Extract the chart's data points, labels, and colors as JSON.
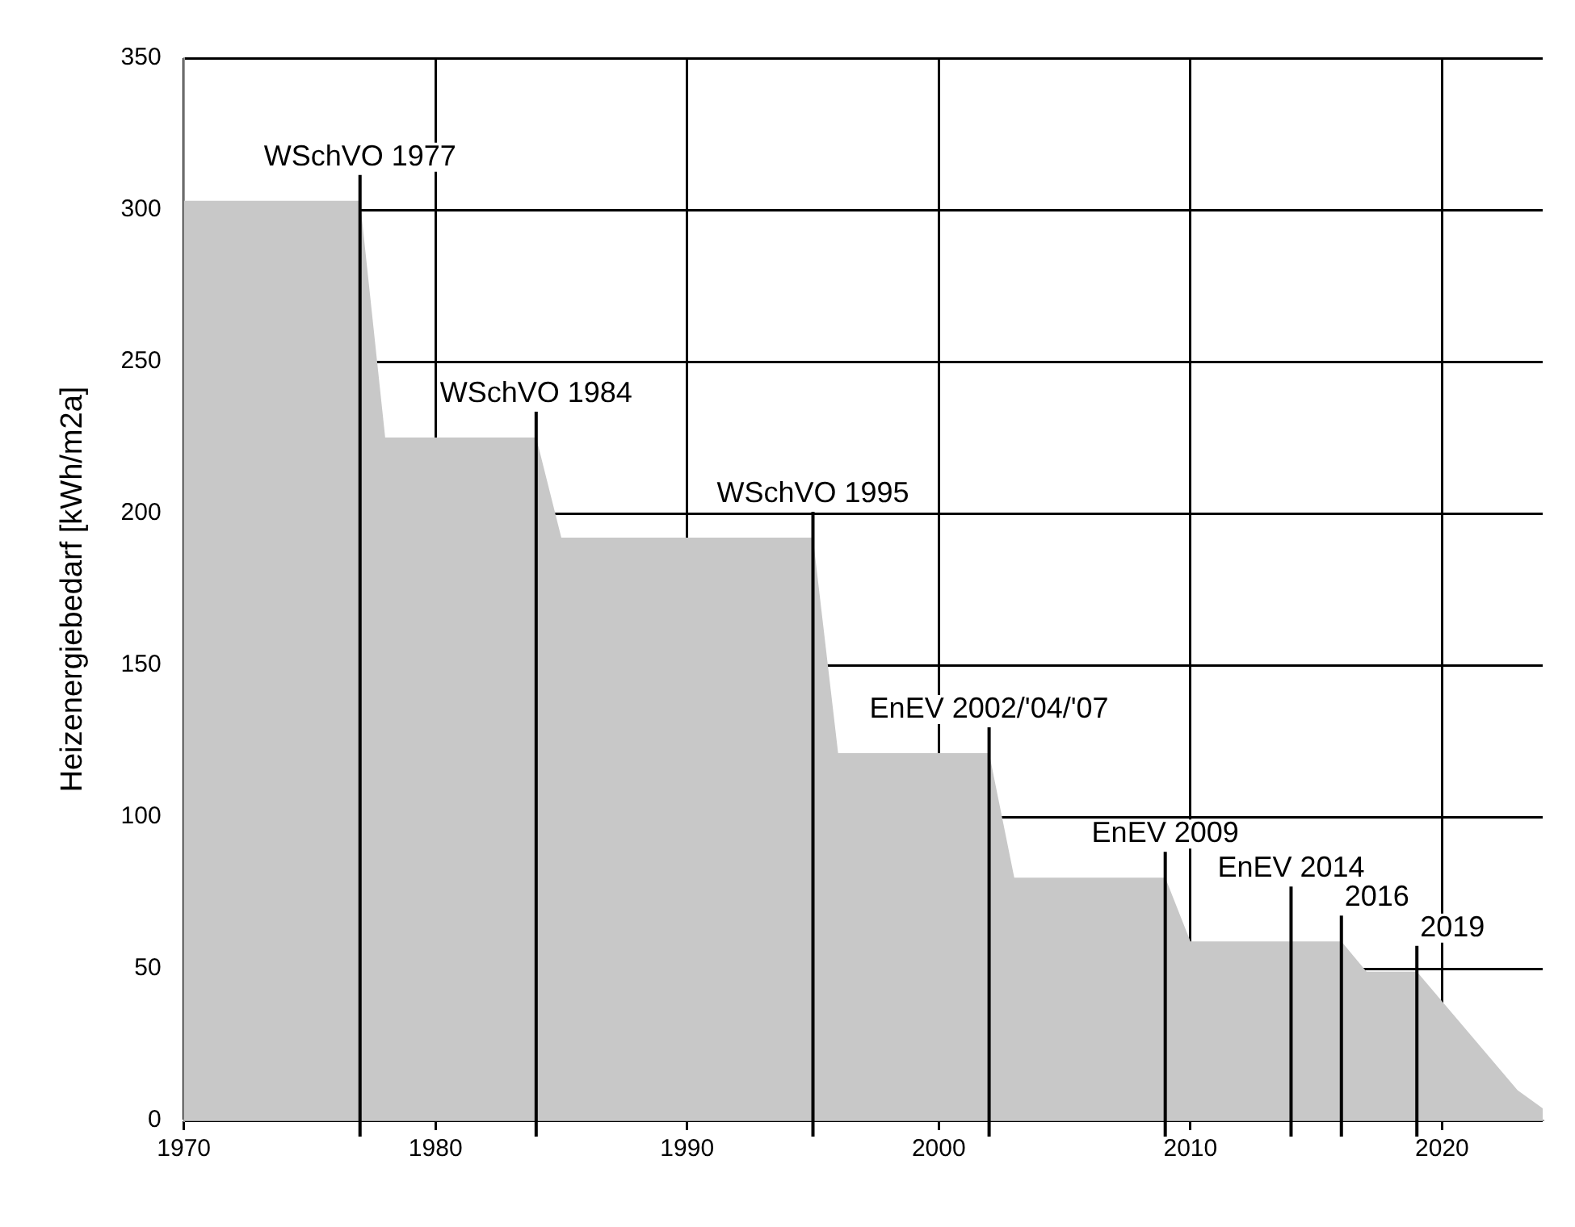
{
  "chart_data": {
    "type": "area",
    "ylabel": "Heizenergiebedarf [kWh/m2a]",
    "x": [
      1970,
      1977,
      1978,
      1984,
      1985,
      1995,
      1996,
      2002,
      2003,
      2009,
      2010,
      2016,
      2017,
      2019,
      2023,
      2024
    ],
    "series": [
      {
        "color": "#c8c8c8",
        "values": [
          303,
          303,
          225,
          225,
          192,
          192,
          121,
          121,
          80,
          80,
          59,
          59,
          49,
          49,
          10,
          4
        ]
      }
    ],
    "xlim": [
      1970,
      2024
    ],
    "xticks": [
      1970,
      1980,
      1990,
      2000,
      2010,
      2020
    ],
    "ylim": [
      0,
      350
    ],
    "yticks": [
      0,
      50,
      100,
      150,
      200,
      250,
      300,
      350
    ],
    "grid": true,
    "legend": false,
    "ref_lines": [
      {
        "axis": "x",
        "value": 1977,
        "label": "WSchVO 1977",
        "color": "#000000"
      },
      {
        "axis": "x",
        "value": 1984,
        "label": "WSchVO 1984",
        "color": "#000000"
      },
      {
        "axis": "x",
        "value": 1995,
        "label": "WSchVO 1995",
        "color": "#000000"
      },
      {
        "axis": "x",
        "value": 2002,
        "label": "EnEV 2002/'04/'07",
        "color": "#000000"
      },
      {
        "axis": "x",
        "value": 2009,
        "label": "EnEV 2009",
        "color": "#000000"
      },
      {
        "axis": "x",
        "value": 2014,
        "label": "EnEV 2014",
        "color": "#000000"
      },
      {
        "axis": "x",
        "value": 2016,
        "label": "2016",
        "color": "#000000"
      },
      {
        "axis": "x",
        "value": 2019,
        "label": "2019",
        "color": "#000000"
      }
    ]
  }
}
